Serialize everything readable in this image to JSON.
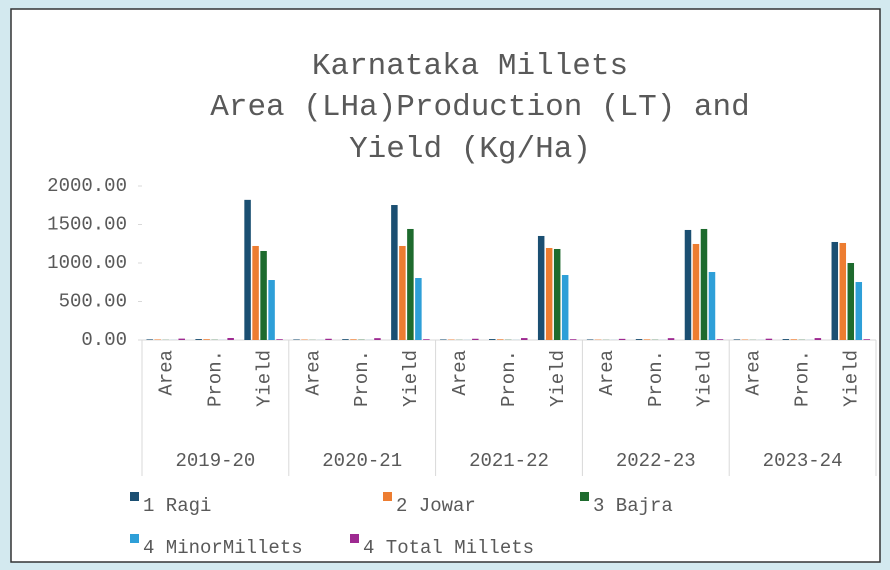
{
  "chart_data": {
    "type": "bar",
    "title": [
      "Karnataka Millets",
      "Area (LHa)Production (LT) and",
      "Yield (Kg/Ha)"
    ],
    "categories": [
      "Area",
      "Pron.",
      "Yield",
      "Area",
      "Pron.",
      "Yield",
      "Area",
      "Pron.",
      "Yield",
      "Area",
      "Pron.",
      "Yield",
      "Area",
      "Pron.",
      "Yield"
    ],
    "category_groups": [
      "2019-20",
      "2020-21",
      "2021-22",
      "2022-23",
      "2023-24"
    ],
    "series": [
      {
        "name": "1 Ragi",
        "color": "#1b4f72",
        "values": [
          8,
          12,
          1820,
          7,
          11,
          1753,
          7,
          12,
          1351,
          7,
          12,
          1429,
          8,
          12,
          1273
        ]
      },
      {
        "name": "2 Jowar",
        "color": "#ed7d31",
        "values": [
          7,
          10,
          1221,
          6,
          9,
          1221,
          6,
          9,
          1195,
          5,
          8,
          1247,
          6,
          9,
          1260
        ]
      },
      {
        "name": "3 Bajra",
        "color": "#1e6b2e",
        "values": [
          2,
          3,
          1156,
          2,
          4,
          1442,
          2,
          3,
          1182,
          2,
          3,
          1442,
          2,
          3,
          1000
        ]
      },
      {
        "name": "4 MinorMillets",
        "color": "#2e9fd8",
        "values": [
          1,
          1,
          779,
          1,
          1,
          805,
          1,
          1,
          844,
          1,
          1,
          883,
          1,
          1,
          753
        ]
      },
      {
        "name": "4 Total Millets",
        "color": "#9e2a91",
        "values": [
          18,
          26,
          10,
          16,
          24,
          10,
          16,
          25,
          10,
          15,
          24,
          10,
          17,
          25,
          10
        ]
      }
    ],
    "ylim": [
      0,
      2000
    ],
    "yticks": [
      {
        "value": 0,
        "label": "0.00"
      },
      {
        "value": 500,
        "label": "500.00"
      },
      {
        "value": 1000,
        "label": "1000.00"
      },
      {
        "value": 1500,
        "label": "1500.00"
      },
      {
        "value": 2000,
        "label": "2000.00"
      }
    ],
    "grid": false
  }
}
